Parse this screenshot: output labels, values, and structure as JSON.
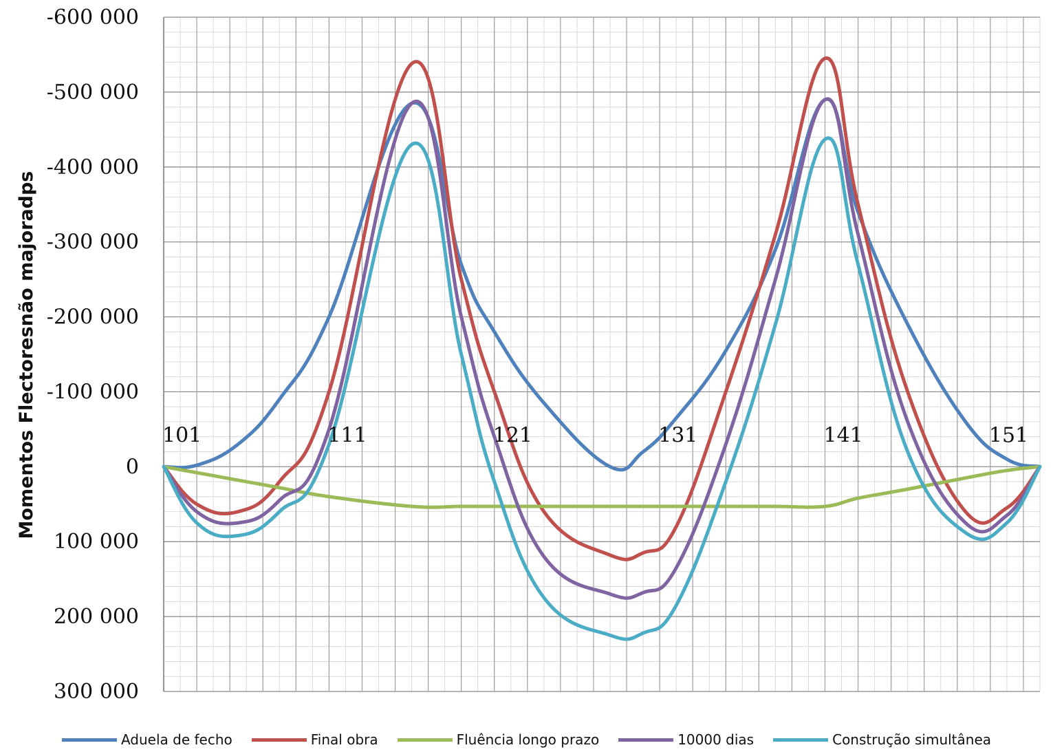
{
  "chart_data": {
    "type": "line",
    "title": "",
    "xlabel": "",
    "ylabel": "Momentos Flectoresnão majoradps",
    "ylim": [
      -600000,
      300000
    ],
    "y_inverted": true,
    "yticks": [
      -600000,
      -500000,
      -400000,
      -300000,
      -200000,
      -100000,
      0,
      100000,
      200000,
      300000
    ],
    "ytick_labels": [
      "-600 000",
      "-500 000",
      "-400 000",
      "-300 000",
      "-200 000",
      "-100 000",
      "0",
      "100 000",
      "200 000",
      "300 000"
    ],
    "xlim": [
      101,
      154
    ],
    "xticks": [
      101,
      111,
      121,
      131,
      141,
      151
    ],
    "xtick_labels": [
      "101",
      "111",
      "121",
      "131",
      "141",
      "151"
    ],
    "grid": true,
    "legend_position": "bottom",
    "x": [
      101,
      103,
      105.5,
      108,
      111,
      116,
      119,
      121,
      124,
      128,
      130,
      132,
      135,
      138,
      141,
      143,
      146,
      149.5,
      152,
      154
    ],
    "series": [
      {
        "name": "Aduela de fecho",
        "color": "#4f81bd",
        "values": [
          0,
          -2000,
          -30000,
          -90000,
          -200000,
          -485000,
          -270000,
          -180000,
          -85000,
          0,
          -20000,
          -65000,
          -155000,
          -290000,
          -490000,
          -340000,
          -190000,
          -60000,
          -10000,
          0
        ]
      },
      {
        "name": "Final obra",
        "color": "#c0504d",
        "values": [
          0,
          50000,
          60000,
          20000,
          -100000,
          -538000,
          -250000,
          -100000,
          60000,
          118000,
          115000,
          80000,
          -100000,
          -310000,
          -545000,
          -350000,
          -100000,
          60000,
          55000,
          0
        ]
      },
      {
        "name": "Fluência longo prazo",
        "color": "#9bbb59",
        "values": [
          0,
          8000,
          18000,
          28000,
          40000,
          53000,
          53000,
          53000,
          53000,
          53000,
          53000,
          53000,
          53000,
          53000,
          53000,
          42000,
          30000,
          15000,
          5000,
          0
        ]
      },
      {
        "name": "10000 dias",
        "color": "#8064a2",
        "values": [
          0,
          60000,
          75000,
          45000,
          -50000,
          -485000,
          -200000,
          -40000,
          120000,
          170000,
          168000,
          135000,
          -30000,
          -250000,
          -490000,
          -310000,
          -60000,
          75000,
          65000,
          0
        ]
      },
      {
        "name": "Construção simultânea",
        "color": "#4bacc6",
        "values": [
          0,
          75000,
          92000,
          60000,
          -30000,
          -430000,
          -150000,
          20000,
          175000,
          225000,
          222000,
          185000,
          20000,
          -190000,
          -437000,
          -270000,
          -20000,
          88000,
          75000,
          0
        ]
      }
    ]
  }
}
